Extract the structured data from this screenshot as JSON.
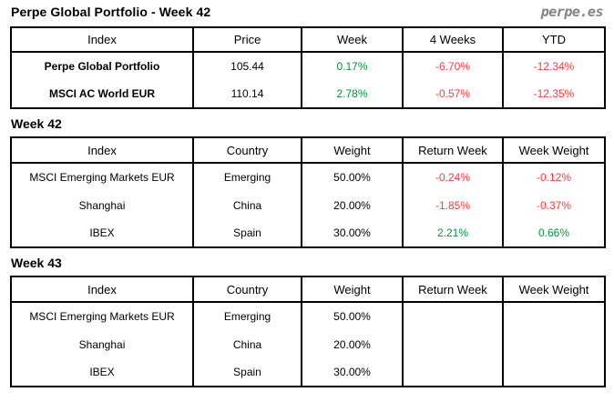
{
  "header": {
    "title": "Perpe Global Portfolio - Week 42",
    "logo": "perpe.es"
  },
  "colors": {
    "positive": "#009639",
    "negative": "#FF3A3A",
    "logo_gray": "#828282",
    "border": "#000000"
  },
  "summary_table": {
    "headers": [
      "Index",
      "Price",
      "Week",
      "4 Weeks",
      "YTD"
    ],
    "rows": [
      {
        "index": "Perpe Global Portfolio",
        "price": "105.44",
        "week": "0.17%",
        "four_weeks": "-6.70%",
        "ytd": "-12.34%"
      },
      {
        "index": "MSCI AC World EUR",
        "price": "110.14",
        "week": "2.78%",
        "four_weeks": "-0.57%",
        "ytd": "-12.35%"
      }
    ]
  },
  "week42": {
    "heading": "Week 42",
    "headers": [
      "Index",
      "Country",
      "Weight",
      "Return Week",
      "Week Weight"
    ],
    "rows": [
      {
        "index": "MSCI Emerging Markets EUR",
        "country": "Emerging",
        "weight": "50.00%",
        "return_week": "-0.24%",
        "week_weight": "-0.12%"
      },
      {
        "index": "Shanghai",
        "country": "China",
        "weight": "20.00%",
        "return_week": "-1.85%",
        "week_weight": "-0.37%"
      },
      {
        "index": "IBEX",
        "country": "Spain",
        "weight": "30.00%",
        "return_week": "2.21%",
        "week_weight": "0.66%"
      }
    ]
  },
  "week43": {
    "heading": "Week 43",
    "headers": [
      "Index",
      "Country",
      "Weight",
      "Return Week",
      "Week Weight"
    ],
    "rows": [
      {
        "index": "MSCI Emerging Markets EUR",
        "country": "Emerging",
        "weight": "50.00%",
        "return_week": "",
        "week_weight": ""
      },
      {
        "index": "Shanghai",
        "country": "China",
        "weight": "20.00%",
        "return_week": "",
        "week_weight": ""
      },
      {
        "index": "IBEX",
        "country": "Spain",
        "weight": "30.00%",
        "return_week": "",
        "week_weight": ""
      }
    ]
  }
}
